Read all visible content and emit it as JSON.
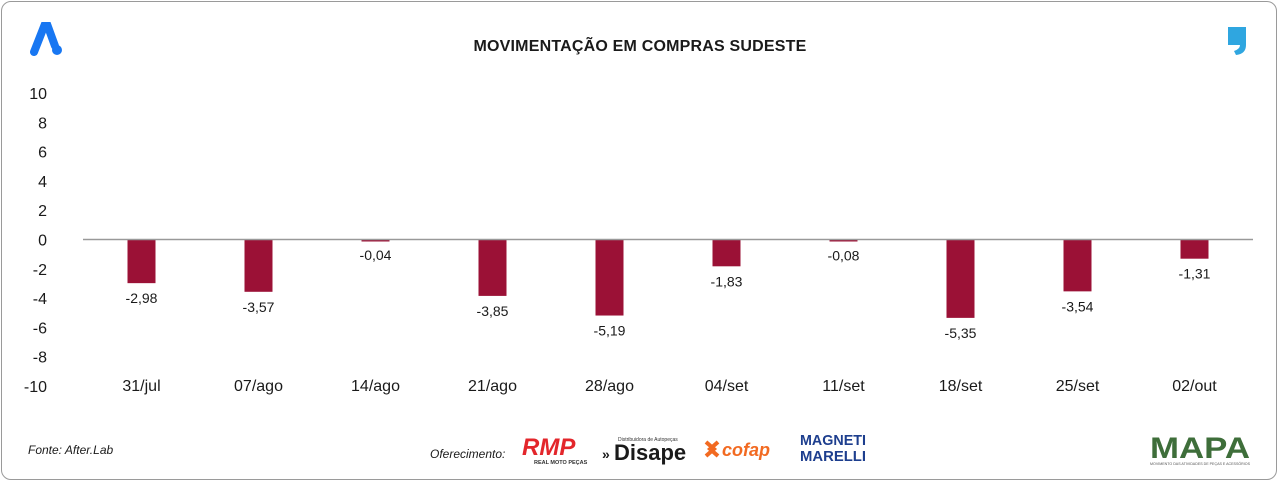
{
  "header": {
    "title": "MOVIMENTAÇÃO EM COMPRAS SUDESTE",
    "left_logo": "after-lab-logo",
    "right_logo": "quote-logo"
  },
  "colors": {
    "bar": "#9B1136",
    "zero_line": "#999999",
    "logo_blue": "#1877F2",
    "quote_blue": "#2FA6E0",
    "rmp_red": "#E3262B",
    "cofap_orange": "#F26A21",
    "magneti_blue": "#1D3E8E",
    "mapa_green": "#3E6E3A"
  },
  "chart_data": {
    "type": "bar",
    "title": "MOVIMENTAÇÃO EM COMPRAS SUDESTE",
    "xlabel": "",
    "ylabel": "",
    "categories": [
      "31/jul",
      "07/ago",
      "14/ago",
      "21/ago",
      "28/ago",
      "04/set",
      "11/set",
      "18/set",
      "25/set",
      "02/out"
    ],
    "values": [
      -2.98,
      -3.57,
      -0.04,
      -3.85,
      -5.19,
      -1.83,
      -0.08,
      -5.35,
      -3.54,
      -1.31
    ],
    "data_labels": [
      "-2,98",
      "-3,57",
      "-0,04",
      "-3,85",
      "-5,19",
      "-1,83",
      "-0,08",
      "-5,35",
      "-3,54",
      "-1,31"
    ],
    "ylim": [
      -10,
      10
    ],
    "yticks": [
      "10",
      "8",
      "6",
      "4",
      "2",
      "0",
      "-2",
      "-4",
      "-6",
      "-8",
      "-10"
    ],
    "ytick_values": [
      10,
      8,
      6,
      4,
      2,
      0,
      -2,
      -4,
      -6,
      -8,
      -10
    ],
    "grid": false,
    "legend": "none"
  },
  "footer": {
    "source": "Fonte: After.Lab",
    "offer_label": "Oferecimento:",
    "sponsors": {
      "rmp": "RMP",
      "rmp_sub": "REAL MOTO PEÇAS",
      "disape": "Disape",
      "disape_sub": "Distribuidora de Autopeças",
      "cofap": "cofap",
      "magneti_1": "MAGNETI",
      "magneti_2": "MARELLI",
      "mapa": "MAPA",
      "mapa_sub": "MOVIMENTO DAS ATIVIDADES DE PEÇAS E ACESSÓRIOS"
    }
  }
}
